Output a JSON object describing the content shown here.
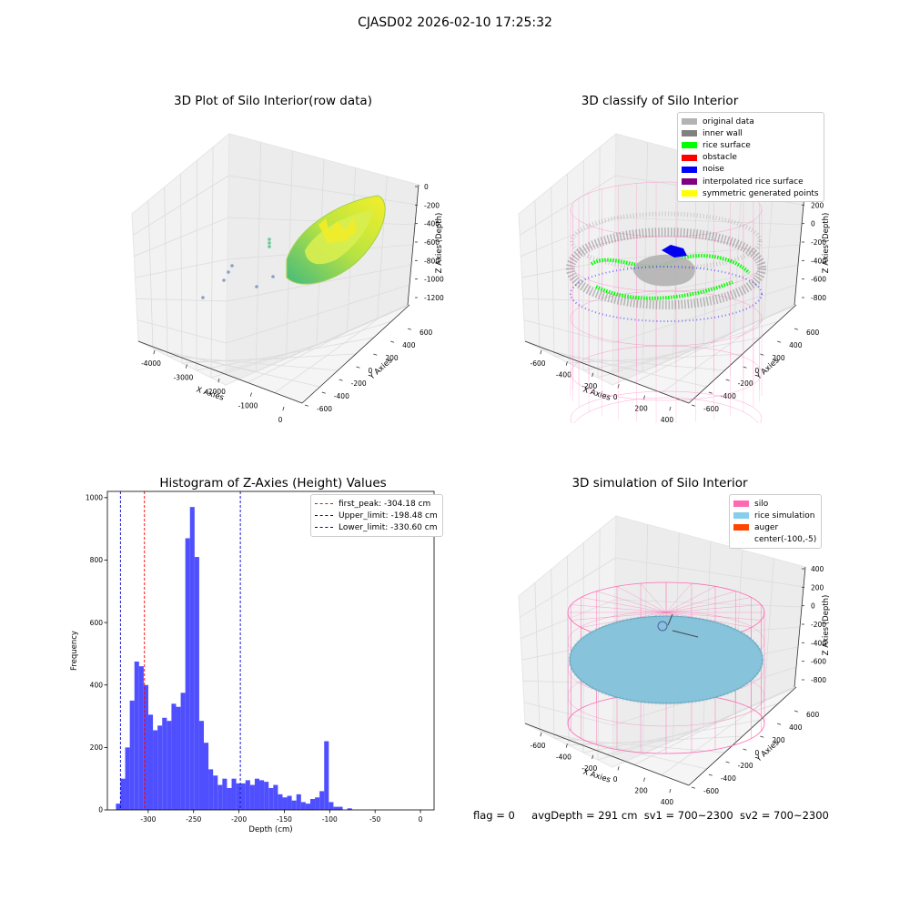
{
  "suptitle": "CJASD02 2026-02-10 17:25:32",
  "status": {
    "flag": "flag = 0",
    "avg_depth": "avgDepth = 291 cm",
    "sv1": "sv1 = 700~2300",
    "sv2": "sv2 = 700~2300"
  },
  "colors": {
    "histogram_bar": "#4b4bff",
    "peak_line": "#ff0000",
    "limit_line": "#0000cc",
    "silo_wire": "#ff69b4",
    "rice_sim": "#87c4dc",
    "rice_gradient": [
      "#3cb878",
      "#b5e33a",
      "#f5f01e"
    ]
  },
  "panels": {
    "raw": {
      "title": "3D Plot of Silo Interior(row data)",
      "xlabel": "X Axies",
      "ylabel": "Y Axies",
      "zlabel": "Z Axies (Depth)",
      "xticks": [
        "-4000",
        "-3000",
        "-2000",
        "-1000",
        "0"
      ],
      "yticks": [
        "-600",
        "-400",
        "-200",
        "0",
        "200",
        "400",
        "600"
      ],
      "zticks": [
        "0",
        "-200",
        "-400",
        "-600",
        "-800",
        "-1000",
        "-1200"
      ]
    },
    "classify": {
      "title": "3D classify of Silo Interior",
      "xlabel": "X Axies",
      "ylabel": "Y Axies",
      "zlabel": "Z Axies (Depth)",
      "xticks": [
        "-600",
        "-400",
        "-200",
        "0",
        "200",
        "400"
      ],
      "yticks": [
        "-600",
        "-400",
        "-200",
        "0",
        "200",
        "400",
        "600"
      ],
      "zticks": [
        "400",
        "200",
        "0",
        "-200",
        "-400",
        "-600",
        "-800"
      ],
      "legend": [
        {
          "label": "original data",
          "color": "#b3b3b3"
        },
        {
          "label": "inner wall",
          "color": "#808080"
        },
        {
          "label": "rice surface",
          "color": "#00ff00"
        },
        {
          "label": "obstacle",
          "color": "#ff0000"
        },
        {
          "label": "noise",
          "color": "#0000ff"
        },
        {
          "label": "interpolated rice surface",
          "color": "#800080"
        },
        {
          "label": "symmetric generated points",
          "color": "#ffff00"
        }
      ]
    },
    "histogram": {
      "title": "Histogram of Z-Axies (Height) Values",
      "xlabel": "Depth (cm)",
      "ylabel": "Frequency",
      "legend": [
        {
          "label": "first_peak: -304.18 cm",
          "color": "#ff0000"
        },
        {
          "label": "Upper_limit: -198.48 cm",
          "color": "#0000cc"
        },
        {
          "label": "Lower_limit: -330.60 cm",
          "color": "#0000cc"
        }
      ]
    },
    "simulation": {
      "title": "3D simulation of Silo Interior",
      "xlabel": "X Axies",
      "ylabel": "Y Axies",
      "zlabel": "Z Axies (Depth)",
      "xticks": [
        "-600",
        "-400",
        "-200",
        "0",
        "200",
        "400"
      ],
      "yticks": [
        "-600",
        "-400",
        "-200",
        "0",
        "200",
        "400",
        "600"
      ],
      "zticks": [
        "400",
        "200",
        "0",
        "-200",
        "-400",
        "-600",
        "-800"
      ],
      "legend": [
        {
          "label": "silo",
          "color": "#ff69b4"
        },
        {
          "label": "rice simulation",
          "color": "#87ceeb"
        },
        {
          "label": "auger",
          "color": "#ff4500"
        },
        {
          "label": "center(-100,-5)",
          "color": ""
        }
      ]
    }
  },
  "chart_data": [
    {
      "type": "histogram",
      "title": "Histogram of Z-Axies (Height) Values",
      "xlabel": "Depth (cm)",
      "ylabel": "Frequency",
      "xlim": [
        -345,
        15
      ],
      "ylim": [
        0,
        1020
      ],
      "xticks": [
        -300,
        -250,
        -200,
        -150,
        -100,
        -50,
        0
      ],
      "yticks": [
        0,
        200,
        400,
        600,
        800,
        1000
      ],
      "bin_edges_start": -335.6,
      "bin_width": 5.1,
      "counts": [
        20,
        100,
        200,
        350,
        475,
        460,
        400,
        305,
        255,
        270,
        295,
        285,
        340,
        330,
        375,
        870,
        970,
        810,
        285,
        215,
        130,
        110,
        80,
        100,
        70,
        100,
        85,
        85,
        95,
        80,
        100,
        95,
        90,
        70,
        80,
        50,
        40,
        45,
        30,
        50,
        25,
        20,
        35,
        40,
        60,
        220,
        25,
        10,
        10,
        0,
        5
      ],
      "vlines": [
        {
          "name": "first_peak",
          "x": -304.18,
          "color": "#ff0000"
        },
        {
          "name": "Upper_limit",
          "x": -198.48,
          "color": "#0000cc"
        },
        {
          "name": "Lower_limit",
          "x": -330.6,
          "color": "#0000cc"
        }
      ],
      "legend_position": "top-right"
    }
  ]
}
